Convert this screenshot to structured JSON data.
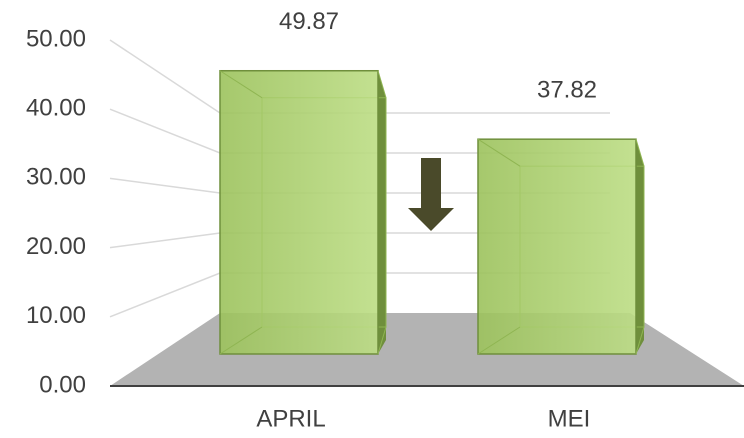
{
  "chart_data": {
    "type": "bar3d",
    "categories": [
      "APRIL",
      "MEI"
    ],
    "values": [
      49.87,
      37.82
    ],
    "value_labels": [
      "49.87",
      "37.82"
    ],
    "color": "#a9cf6b",
    "ylim": [
      0,
      50
    ],
    "yticks": [
      {
        "value": 0,
        "label": "0.00"
      },
      {
        "value": 10,
        "label": "10.00"
      },
      {
        "value": 20,
        "label": "20.00"
      },
      {
        "value": 30,
        "label": "30.00"
      },
      {
        "value": 40,
        "label": "40.00"
      },
      {
        "value": 50,
        "label": "50.00"
      }
    ],
    "grid": true
  }
}
